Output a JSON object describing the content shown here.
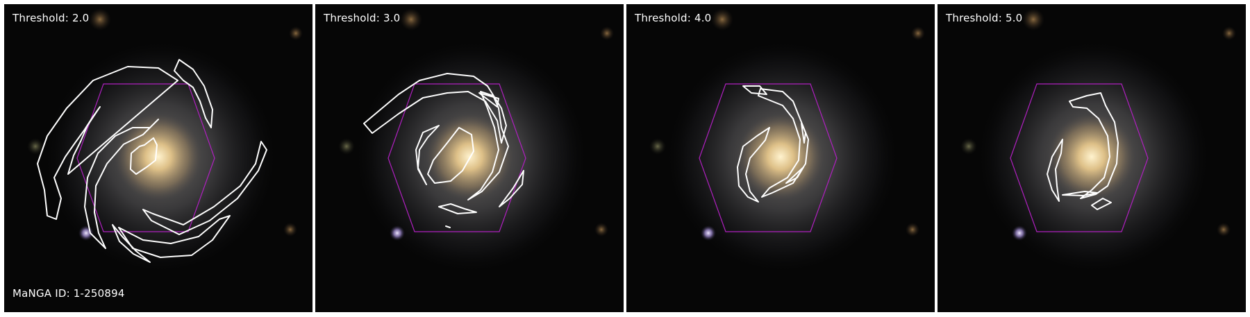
{
  "panels": [
    {
      "threshold_label": "Threshold: 2.0"
    },
    {
      "threshold_label": "Threshold: 3.0"
    },
    {
      "threshold_label": "Threshold: 4.0"
    },
    {
      "threshold_label": "Threshold: 5.0"
    }
  ],
  "manga_id_label": "MaNGA ID: 1-250894",
  "colors": {
    "contour": "#ffffff",
    "hexagon": "#b020c0",
    "galaxy_core": "#e8c884",
    "background": "#060606"
  }
}
